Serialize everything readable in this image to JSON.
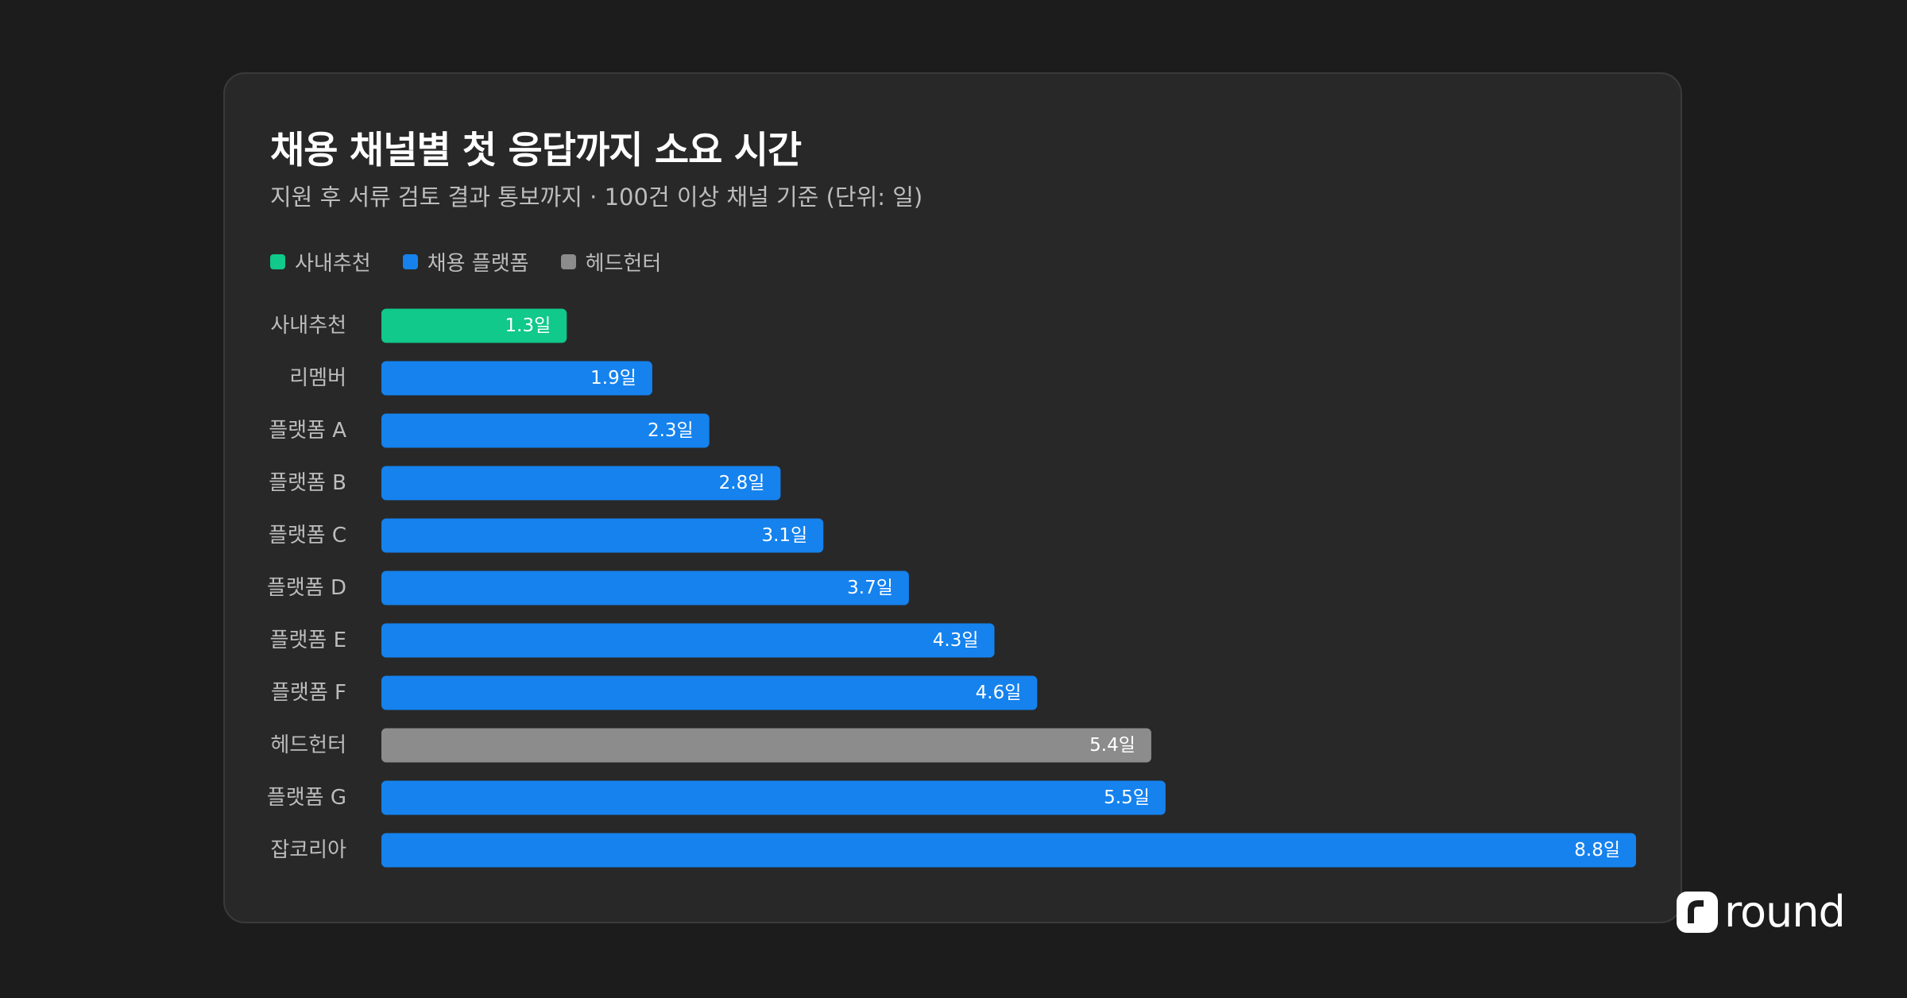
{
  "chart_data": {
    "type": "bar",
    "orientation": "horizontal",
    "title": "채용 채널별 첫 응답까지 소요 시간",
    "subtitle": "지원 후 서류 검토 결과 통보까지 · 100건 이상 채널 기준 (단위: 일)",
    "legend": [
      {
        "name": "사내추천",
        "color": "#10c98a"
      },
      {
        "name": "채용 플랫폼",
        "color": "#1582ee"
      },
      {
        "name": "헤드헌터",
        "color": "#8c8c8c"
      }
    ],
    "legend_position": "top-left",
    "categories": [
      "사내추천",
      "리멤버",
      "플랫폼 A",
      "플랫폼 B",
      "플랫폼 C",
      "플랫폼 D",
      "플랫폼 E",
      "플랫폼 F",
      "헤드헌터",
      "플랫폼 G",
      "잡코리아"
    ],
    "values": [
      1.3,
      1.9,
      2.3,
      2.8,
      3.1,
      3.7,
      4.3,
      4.6,
      5.4,
      5.5,
      8.8
    ],
    "labels": [
      "1.3일",
      "1.9일",
      "2.3일",
      "2.8일",
      "3.1일",
      "3.7일",
      "4.3일",
      "4.6일",
      "5.4일",
      "5.5일",
      "8.8일"
    ],
    "groups": [
      "사내추천",
      "채용 플랫폼",
      "채용 플랫폼",
      "채용 플랫폼",
      "채용 플랫폼",
      "채용 플랫폼",
      "채용 플랫폼",
      "채용 플랫폼",
      "헤드헌터",
      "채용 플랫폼",
      "채용 플랫폼"
    ],
    "xlim": [
      0,
      8.8
    ],
    "grid": false
  },
  "brand": {
    "logo_text": "round"
  },
  "colors": {
    "background": "#1c1c1c",
    "card": "#282828",
    "axis_label": "#bdbdbd"
  }
}
